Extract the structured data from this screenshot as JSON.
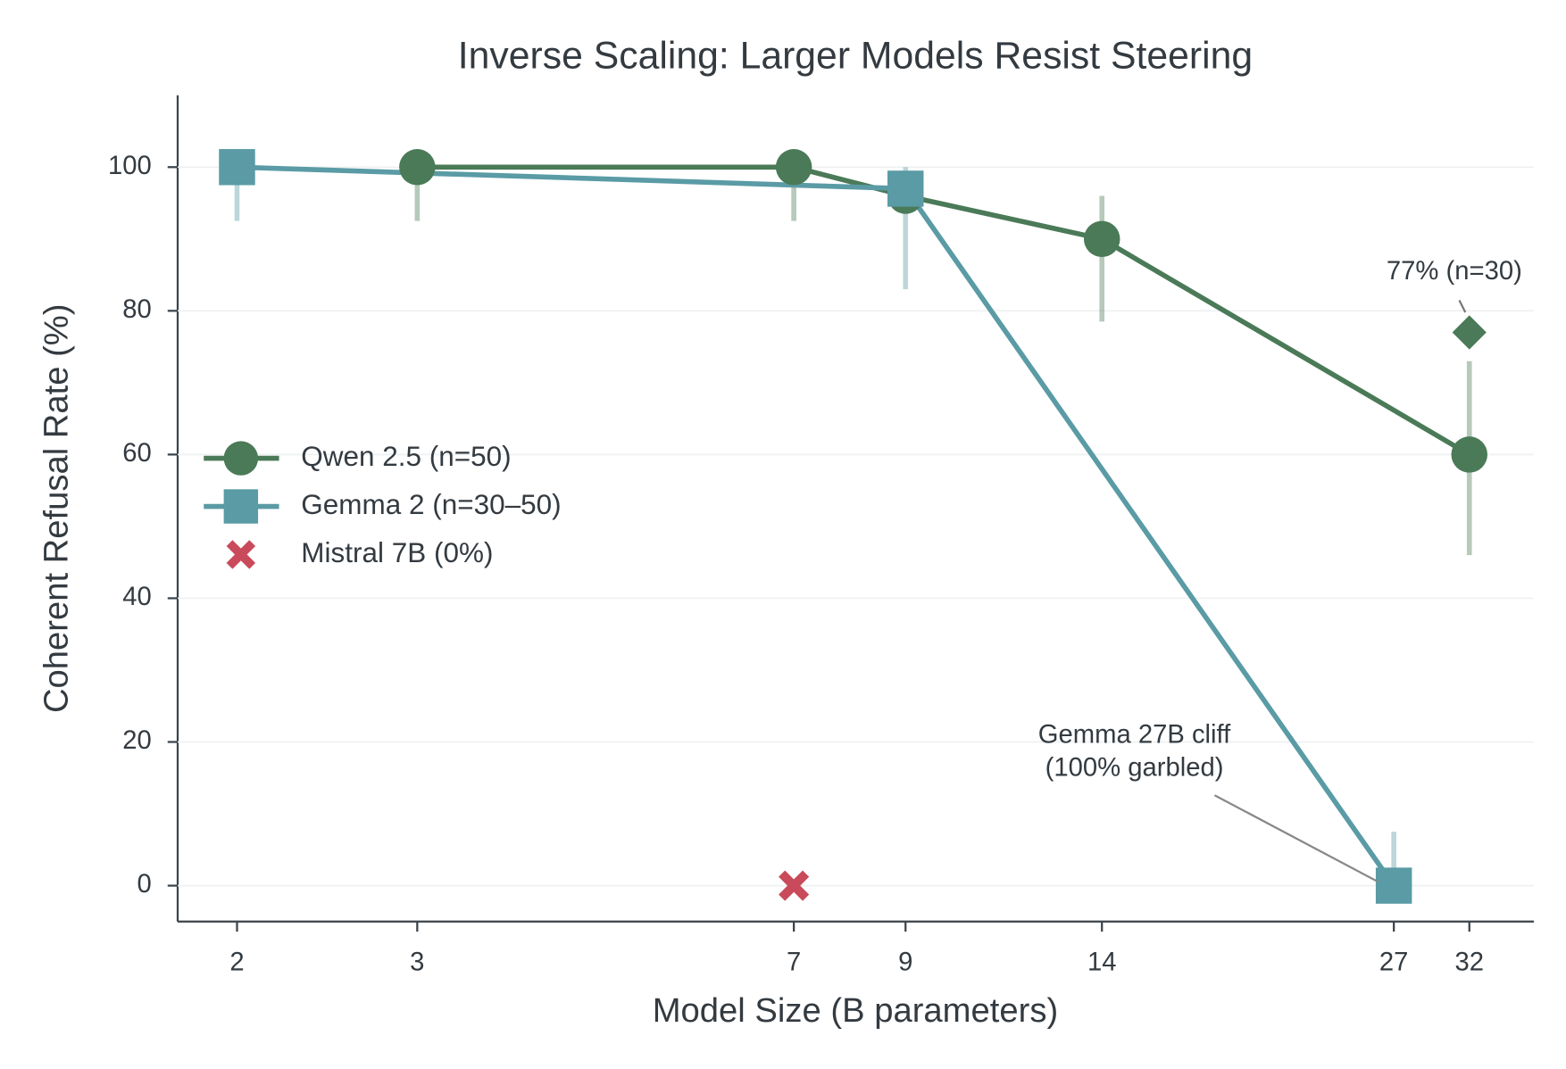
{
  "chart_data": {
    "type": "line",
    "title": "Inverse Scaling: Larger Models Resist Steering",
    "xlabel": "Model Size (B parameters)",
    "ylabel": "Coherent Refusal Rate (%)",
    "xscale": "log",
    "xlim": [
      1.75,
      37
    ],
    "xticks": [
      2,
      3,
      7,
      9,
      14,
      27,
      32
    ],
    "ylim": [
      -5,
      110
    ],
    "yticks": [
      0,
      20,
      40,
      60,
      80,
      100
    ],
    "grid": true,
    "legend": "center left",
    "series": [
      {
        "name": "Qwen 2.5 (n=50)",
        "color": "#4a7a57",
        "marker": "circle",
        "x": [
          3,
          7,
          9,
          14,
          32
        ],
        "values": [
          100,
          100,
          96,
          90,
          60
        ],
        "ci_low": [
          92.5,
          92.5,
          null,
          78.5,
          46
        ],
        "ci_high": [
          100,
          100,
          null,
          96,
          73
        ]
      },
      {
        "name": "Gemma 2 (n=30–50)",
        "color": "#5a9ba5",
        "marker": "square",
        "x": [
          2,
          9,
          27
        ],
        "values": [
          100,
          97,
          0
        ],
        "ci_low": [
          92.5,
          83,
          0
        ],
        "ci_high": [
          100,
          100,
          7.5
        ]
      },
      {
        "name": "Mistral 7B (0%)",
        "color": "#c94a5a",
        "marker": "x",
        "line": false,
        "x": [
          7
        ],
        "values": [
          0
        ]
      }
    ],
    "extra_points": [
      {
        "x": 32,
        "value": 77,
        "value_label": "77% (n=30)",
        "color": "#4a7a57",
        "marker": "diamond"
      }
    ],
    "annotations": [
      {
        "lines": [
          "Gemma 27B cliff",
          "(100% garbled)"
        ],
        "color": "#5a9ba5"
      }
    ]
  }
}
